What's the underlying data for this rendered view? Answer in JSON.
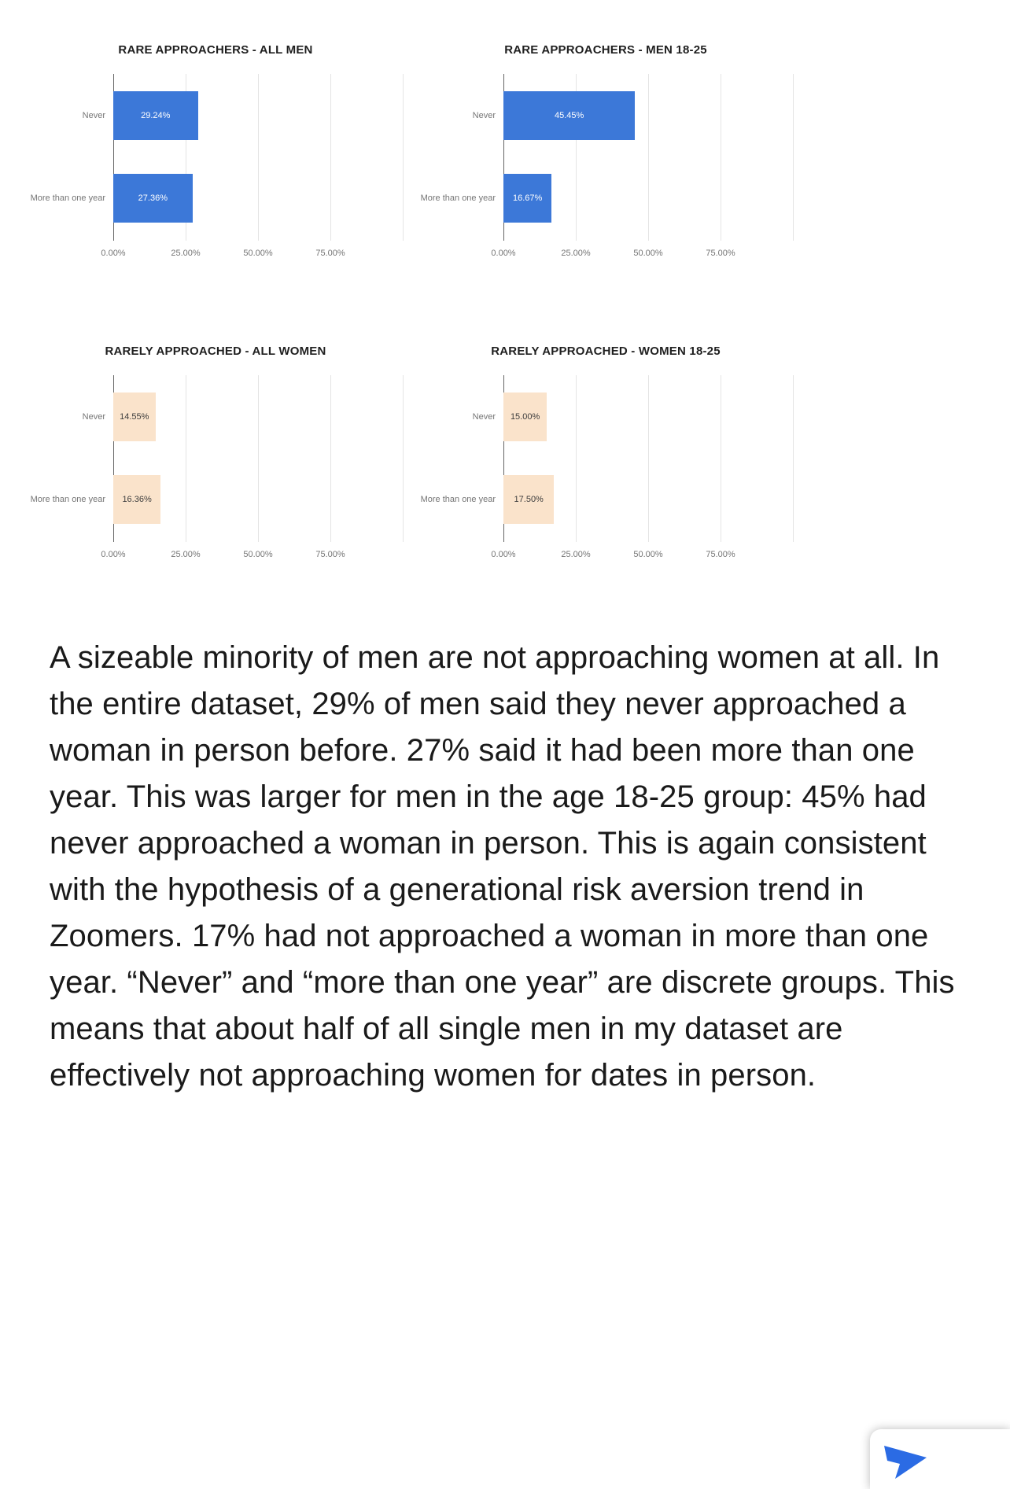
{
  "page": {
    "background": "#ffffff",
    "text_color": "#1a1a1a"
  },
  "chart_data": [
    {
      "type": "bar",
      "orientation": "horizontal",
      "title": "RARE APPROACHERS - ALL MEN",
      "categories": [
        "Never",
        "More than one year"
      ],
      "values": [
        29.24,
        27.36
      ],
      "value_labels": [
        "29.24%",
        "27.36%"
      ],
      "bar_color": "#3c78d8",
      "value_label_color": "#ffffff",
      "xlim": [
        0,
        102
      ],
      "xticks": [
        "0.00%",
        "25.00%",
        "50.00%",
        "75.00%"
      ],
      "xtick_pcts": [
        0,
        25,
        50,
        75
      ],
      "grid_pcts": [
        0,
        25,
        50,
        75,
        100
      ],
      "grid": true,
      "legend": false
    },
    {
      "type": "bar",
      "orientation": "horizontal",
      "title": "RARE APPROACHERS - MEN 18-25",
      "categories": [
        "Never",
        "More than one year"
      ],
      "values": [
        45.45,
        16.67
      ],
      "value_labels": [
        "45.45%",
        "16.67%"
      ],
      "bar_color": "#3c78d8",
      "value_label_color": "#ffffff",
      "xlim": [
        0,
        102
      ],
      "xticks": [
        "0.00%",
        "25.00%",
        "50.00%",
        "75.00%"
      ],
      "xtick_pcts": [
        0,
        25,
        50,
        75
      ],
      "grid_pcts": [
        0,
        25,
        50,
        75,
        100
      ],
      "grid": true,
      "legend": false
    },
    {
      "type": "bar",
      "orientation": "horizontal",
      "title": "RARELY APPROACHED - ALL WOMEN",
      "categories": [
        "Never",
        "More than one year"
      ],
      "values": [
        14.55,
        16.36
      ],
      "value_labels": [
        "14.55%",
        "16.36%"
      ],
      "bar_color": "#fae3cb",
      "value_label_color": "#3d3d3d",
      "xlim": [
        0,
        102
      ],
      "xticks": [
        "0.00%",
        "25.00%",
        "50.00%",
        "75.00%"
      ],
      "xtick_pcts": [
        0,
        25,
        50,
        75
      ],
      "grid_pcts": [
        0,
        25,
        50,
        75,
        100
      ],
      "grid": true,
      "legend": false
    },
    {
      "type": "bar",
      "orientation": "horizontal",
      "title": "RARELY APPROACHED - WOMEN 18-25",
      "categories": [
        "Never",
        "More than one year"
      ],
      "values": [
        15.0,
        17.5
      ],
      "value_labels": [
        "15.00%",
        "17.50%"
      ],
      "bar_color": "#fae3cb",
      "value_label_color": "#3d3d3d",
      "xlim": [
        0,
        102
      ],
      "xticks": [
        "0.00%",
        "25.00%",
        "50.00%",
        "75.00%"
      ],
      "xtick_pcts": [
        0,
        25,
        50,
        75
      ],
      "grid_pcts": [
        0,
        25,
        50,
        75,
        100
      ],
      "grid": true,
      "legend": false
    }
  ],
  "article": {
    "paragraph": "A sizeable minority of men are not approaching women at all. In the entire dataset, 29% of men said they never approached a woman in person before. 27% said it had been more than one year. This was larger for men in the age 18-25 group: 45% had never approached a woman in person. This is again consistent with the hypothesis of a generational risk aversion trend in Zoomers. 17% had not approached a woman in more than one year. “Never” and “more than one year” are discrete groups. This means that about half of all single men in my dataset are effectively not approaching women for dates in person."
  },
  "floating_button": {
    "icon": "blue-arrow",
    "icon_color": "#2b6be4"
  }
}
